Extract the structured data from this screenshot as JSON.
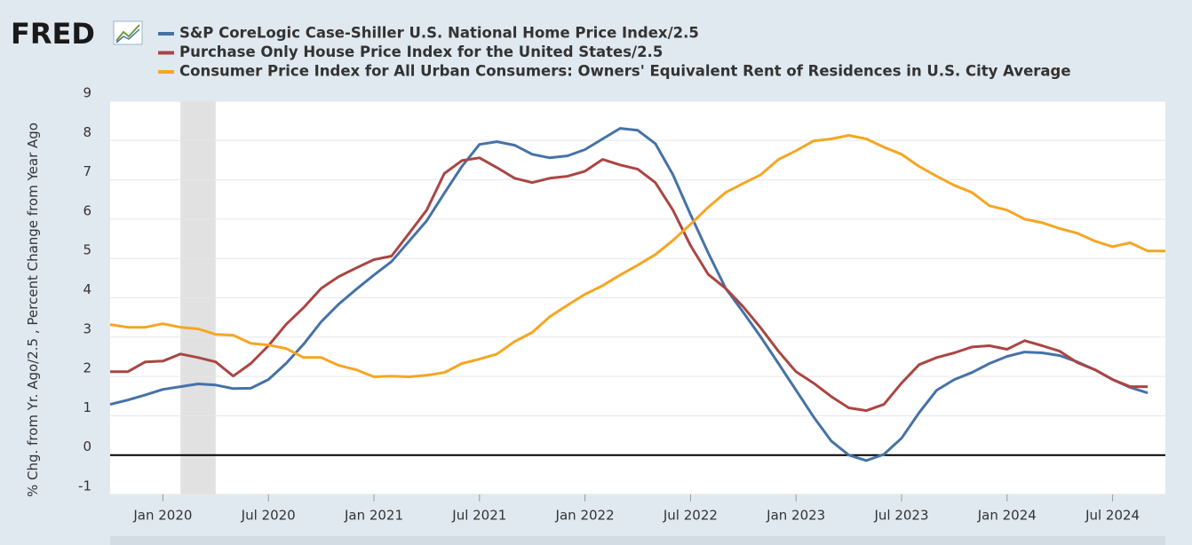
{
  "chart_data": {
    "type": "line",
    "logo": "FRED",
    "ylabel": "% Chg. from Yr. Ago/2.5 , Percent Change from Year Ago",
    "x": [
      "2019-10",
      "2019-11",
      "2019-12",
      "2020-01",
      "2020-02",
      "2020-03",
      "2020-04",
      "2020-05",
      "2020-06",
      "2020-07",
      "2020-08",
      "2020-09",
      "2020-10",
      "2020-11",
      "2020-12",
      "2021-01",
      "2021-02",
      "2021-03",
      "2021-04",
      "2021-05",
      "2021-06",
      "2021-07",
      "2021-08",
      "2021-09",
      "2021-10",
      "2021-11",
      "2021-12",
      "2022-01",
      "2022-02",
      "2022-03",
      "2022-04",
      "2022-05",
      "2022-06",
      "2022-07",
      "2022-08",
      "2022-09",
      "2022-10",
      "2022-11",
      "2022-12",
      "2023-01",
      "2023-02",
      "2023-03",
      "2023-04",
      "2023-05",
      "2023-06",
      "2023-07",
      "2023-08",
      "2023-09",
      "2023-10",
      "2023-11",
      "2023-12",
      "2024-01",
      "2024-02",
      "2024-03",
      "2024-04",
      "2024-05",
      "2024-06",
      "2024-07",
      "2024-08",
      "2024-09",
      "2024-10"
    ],
    "series": [
      {
        "name": "S&P CoreLogic Case-Shiller U.S. National Home Price Index/2.5",
        "color": "#4572a7",
        "values": [
          1.29,
          1.4,
          1.53,
          1.67,
          1.74,
          1.81,
          1.78,
          1.69,
          1.7,
          1.92,
          2.33,
          2.82,
          3.39,
          3.84,
          4.22,
          4.58,
          4.92,
          5.44,
          5.96,
          6.66,
          7.34,
          7.9,
          7.97,
          7.88,
          7.65,
          7.56,
          7.61,
          7.77,
          8.04,
          8.31,
          8.26,
          7.92,
          7.13,
          6.12,
          5.15,
          4.24,
          3.63,
          3.0,
          2.33,
          1.65,
          0.97,
          0.36,
          0.0,
          -0.14,
          0.02,
          0.43,
          1.08,
          1.65,
          1.92,
          2.1,
          2.33,
          2.51,
          2.62,
          2.6,
          2.53,
          2.37,
          2.17,
          1.92,
          1.72,
          1.58,
          null
        ]
      },
      {
        "name": "Purchase Only House Price Index for the United States/2.5",
        "color": "#aa4643",
        "values": [
          2.12,
          2.12,
          2.37,
          2.39,
          2.57,
          2.48,
          2.37,
          2.01,
          2.33,
          2.78,
          3.32,
          3.75,
          4.24,
          4.54,
          4.76,
          4.97,
          5.06,
          5.64,
          6.23,
          7.16,
          7.49,
          7.56,
          7.31,
          7.04,
          6.93,
          7.04,
          7.09,
          7.22,
          7.52,
          7.38,
          7.27,
          6.93,
          6.23,
          5.33,
          4.6,
          4.24,
          3.77,
          3.23,
          2.64,
          2.12,
          1.83,
          1.49,
          1.2,
          1.13,
          1.29,
          1.83,
          2.3,
          2.48,
          2.6,
          2.75,
          2.78,
          2.69,
          2.91,
          2.78,
          2.64,
          2.35,
          2.17,
          1.92,
          1.74,
          1.74,
          null
        ]
      },
      {
        "name": "Consumer Price Index for All Urban Consumers: Owners' Equivalent Rent of Residences in U.S. City Average",
        "color": "#f5a623",
        "values": [
          3.32,
          3.25,
          3.25,
          3.34,
          3.25,
          3.21,
          3.07,
          3.05,
          2.84,
          2.8,
          2.71,
          2.48,
          2.48,
          2.28,
          2.17,
          1.99,
          2.01,
          1.99,
          2.03,
          2.1,
          2.33,
          2.44,
          2.57,
          2.89,
          3.12,
          3.52,
          3.81,
          4.09,
          4.31,
          4.58,
          4.83,
          5.1,
          5.46,
          5.87,
          6.3,
          6.68,
          6.91,
          7.13,
          7.52,
          7.74,
          7.99,
          8.04,
          8.13,
          8.04,
          7.83,
          7.65,
          7.34,
          7.09,
          6.86,
          6.68,
          6.34,
          6.23,
          6.0,
          5.91,
          5.76,
          5.64,
          5.44,
          5.3,
          5.4,
          5.19,
          5.19
        ]
      }
    ],
    "xlim": [
      "2019-10",
      "2024-10"
    ],
    "xticks": [
      {
        "value": "2020-01",
        "label": "Jan 2020"
      },
      {
        "value": "2020-07",
        "label": "Jul 2020"
      },
      {
        "value": "2021-01",
        "label": "Jan 2021"
      },
      {
        "value": "2021-07",
        "label": "Jul 2021"
      },
      {
        "value": "2022-01",
        "label": "Jan 2022"
      },
      {
        "value": "2022-07",
        "label": "Jul 2022"
      },
      {
        "value": "2023-01",
        "label": "Jan 2023"
      },
      {
        "value": "2023-07",
        "label": "Jul 2023"
      },
      {
        "value": "2024-01",
        "label": "Jan 2024"
      },
      {
        "value": "2024-07",
        "label": "Jul 2024"
      }
    ],
    "ylim": [
      -1,
      9
    ],
    "yticks": [
      -1,
      0,
      1,
      2,
      3,
      4,
      5,
      6,
      7,
      8,
      9
    ],
    "grid": true,
    "recessions": [
      {
        "start": "2020-02",
        "end": "2020-04"
      }
    ]
  }
}
